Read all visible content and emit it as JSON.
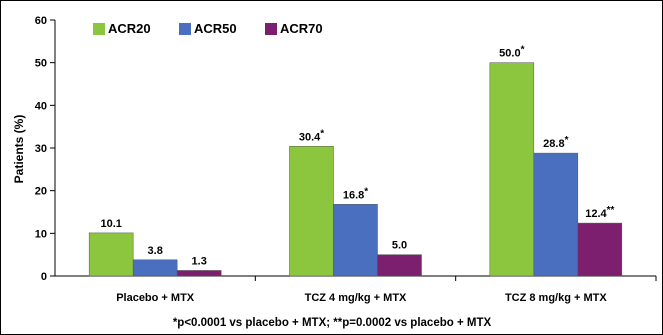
{
  "chart_data": {
    "type": "bar",
    "title": "",
    "xlabel": "",
    "ylabel": "Patients (%)",
    "ylim": [
      0,
      60
    ],
    "yticks": [
      0,
      10,
      20,
      30,
      40,
      50,
      60
    ],
    "grid": false,
    "legend_position": "top-left",
    "categories": [
      "Placebo + MTX",
      "TCZ 4 mg/kg + MTX",
      "TCZ 8 mg/kg + MTX"
    ],
    "series": [
      {
        "name": "ACR20",
        "color": "#8cc63f",
        "values": [
          10.1,
          30.4,
          50.0
        ],
        "labels": [
          "10.1",
          "30.4",
          "50.0"
        ],
        "marks": [
          "",
          "*",
          "*"
        ]
      },
      {
        "name": "ACR50",
        "color": "#4a6fbf",
        "values": [
          3.8,
          16.8,
          28.8
        ],
        "labels": [
          "3.8",
          "16.8",
          "28.8"
        ],
        "marks": [
          "",
          "*",
          "*"
        ]
      },
      {
        "name": "ACR70",
        "color": "#7b1f6e",
        "values": [
          1.3,
          5.0,
          12.4
        ],
        "labels": [
          "1.3",
          "5.0",
          "12.4"
        ],
        "marks": [
          "",
          "",
          "**"
        ]
      }
    ],
    "footnote": "*p<0.0001 vs placebo + MTX; **p=0.0002 vs placebo + MTX"
  }
}
